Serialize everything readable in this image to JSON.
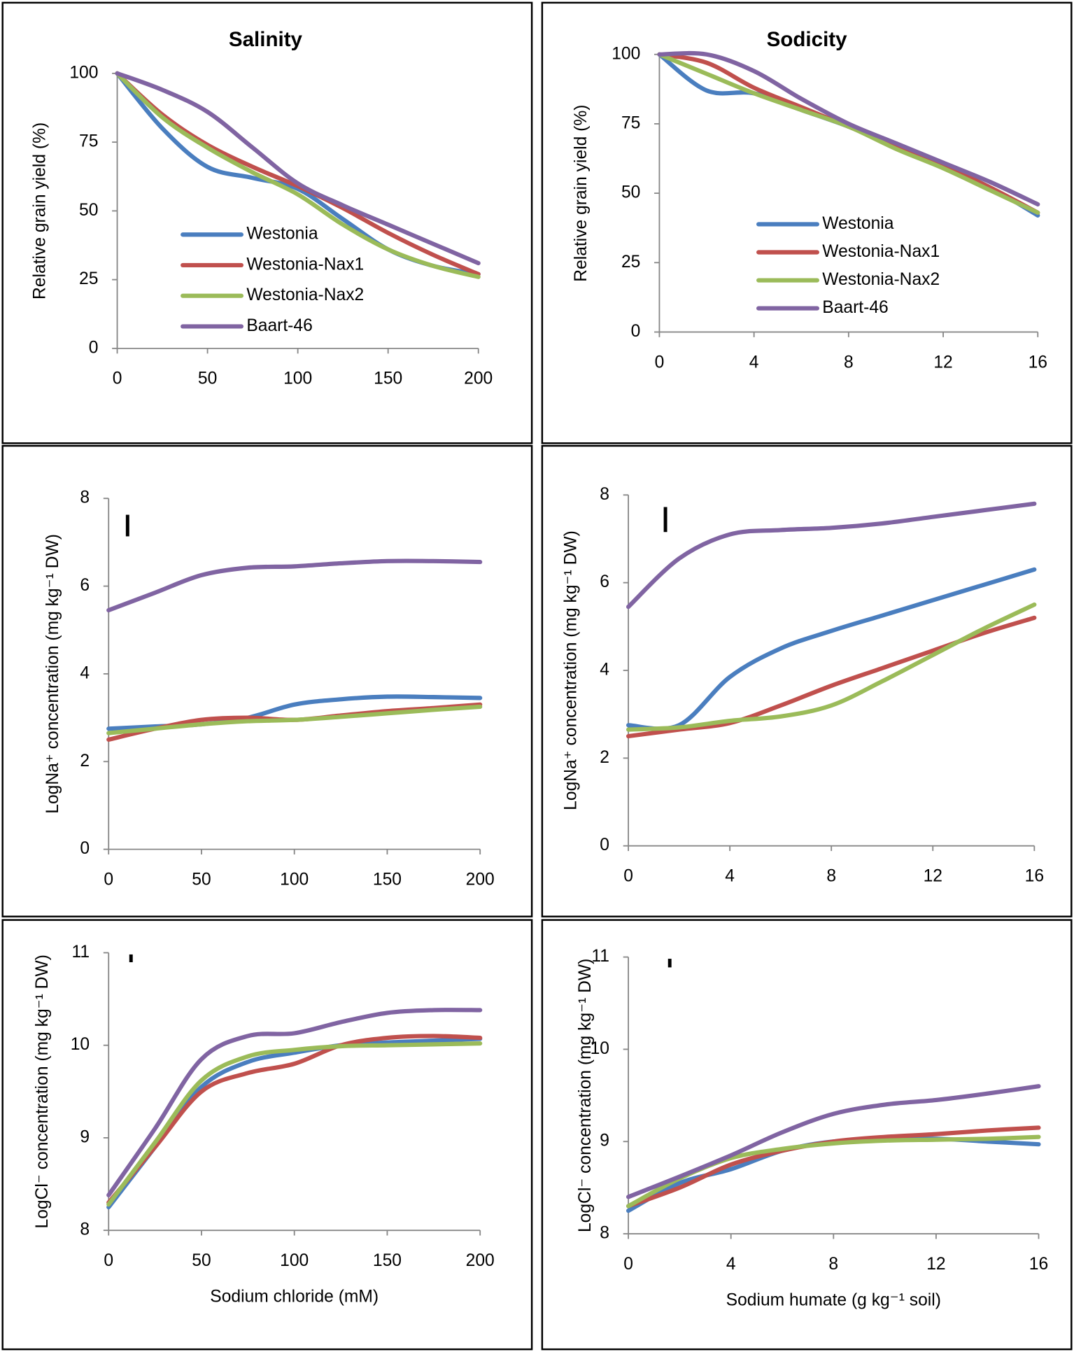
{
  "chart_data": [
    {
      "type": "line",
      "title": "Salinity",
      "y_label": "Relative grain yield (%)",
      "x": [
        0,
        25,
        50,
        75,
        100,
        125,
        150,
        175,
        200
      ],
      "xlim": [
        0,
        200
      ],
      "xticks": [
        0,
        50,
        100,
        150,
        200
      ],
      "ylim": [
        0,
        100
      ],
      "yticks": [
        0,
        25,
        50,
        75,
        100
      ],
      "legend": true,
      "series": [
        {
          "name": "Westonia",
          "color": "#4a7ebf",
          "values": [
            100,
            80,
            66,
            62,
            58,
            47,
            36,
            30,
            27
          ]
        },
        {
          "name": "Westonia-Nax1",
          "color": "#c0504d",
          "values": [
            100,
            85,
            74,
            66,
            59,
            51,
            42,
            34,
            27
          ]
        },
        {
          "name": "Westonia-Nax2",
          "color": "#9bbb59",
          "values": [
            100,
            84,
            73,
            64,
            56,
            45,
            36,
            30,
            26
          ]
        },
        {
          "name": "Baart-46",
          "color": "#8064a2",
          "values": [
            100,
            94,
            86,
            73,
            60,
            52,
            45,
            38,
            31
          ]
        }
      ]
    },
    {
      "type": "line",
      "title": "Sodicity",
      "y_label": "Relative grain yield (%)",
      "x": [
        0,
        2,
        4,
        6,
        8,
        10,
        12,
        14,
        16
      ],
      "xlim": [
        0,
        16
      ],
      "xticks": [
        0,
        4,
        8,
        12,
        16
      ],
      "ylim": [
        0,
        100
      ],
      "yticks": [
        0,
        25,
        50,
        75,
        100
      ],
      "legend": true,
      "series": [
        {
          "name": "Westonia",
          "color": "#4a7ebf",
          "values": [
            100,
            87,
            86,
            80,
            74,
            67,
            60,
            52,
            42
          ]
        },
        {
          "name": "Westonia-Nax1",
          "color": "#c0504d",
          "values": [
            100,
            97,
            88,
            81,
            74,
            67,
            60,
            52,
            43
          ]
        },
        {
          "name": "Westonia-Nax2",
          "color": "#9bbb59",
          "values": [
            100,
            93,
            86,
            80,
            74,
            66,
            59,
            51,
            43
          ]
        },
        {
          "name": "Baart-46",
          "color": "#8064a2",
          "values": [
            100,
            100,
            94,
            84,
            75,
            68,
            61,
            54,
            46
          ]
        }
      ]
    },
    {
      "type": "line",
      "y_label": "LogNa⁺ concentration (mg kg⁻¹ DW)",
      "x": [
        0,
        25,
        50,
        75,
        100,
        125,
        150,
        175,
        200
      ],
      "xlim": [
        0,
        200
      ],
      "xticks": [
        0,
        50,
        100,
        150,
        200
      ],
      "ylim": [
        0,
        8
      ],
      "yticks": [
        0,
        2,
        4,
        6,
        8
      ],
      "legend": false,
      "series": [
        {
          "color": "#4a7ebf",
          "values": [
            2.75,
            2.8,
            2.85,
            3.0,
            3.3,
            3.42,
            3.48,
            3.47,
            3.45
          ]
        },
        {
          "color": "#c0504d",
          "values": [
            2.5,
            2.75,
            2.95,
            3.0,
            2.95,
            3.05,
            3.15,
            3.22,
            3.3
          ]
        },
        {
          "color": "#9bbb59",
          "values": [
            2.65,
            2.75,
            2.85,
            2.92,
            2.95,
            3.02,
            3.1,
            3.18,
            3.25
          ]
        },
        {
          "color": "#8064a2",
          "values": [
            5.45,
            5.85,
            6.25,
            6.42,
            6.45,
            6.52,
            6.57,
            6.57,
            6.55
          ]
        }
      ]
    },
    {
      "type": "line",
      "y_label": "LogNa⁺ concentration (mg kg⁻¹ DW)",
      "x": [
        0,
        2,
        4,
        6,
        8,
        10,
        12,
        14,
        16
      ],
      "xlim": [
        0,
        16
      ],
      "xticks": [
        0,
        4,
        8,
        12,
        16
      ],
      "ylim": [
        0,
        8
      ],
      "yticks": [
        0,
        2,
        4,
        6,
        8
      ],
      "legend": false,
      "series": [
        {
          "color": "#4a7ebf",
          "values": [
            2.75,
            2.75,
            3.85,
            4.5,
            4.9,
            5.25,
            5.6,
            5.95,
            6.3
          ]
        },
        {
          "color": "#c0504d",
          "values": [
            2.5,
            2.65,
            2.8,
            3.2,
            3.65,
            4.05,
            4.45,
            4.85,
            5.2
          ]
        },
        {
          "color": "#9bbb59",
          "values": [
            2.65,
            2.7,
            2.85,
            2.95,
            3.2,
            3.75,
            4.35,
            4.95,
            5.5
          ]
        },
        {
          "color": "#8064a2",
          "values": [
            5.45,
            6.55,
            7.1,
            7.2,
            7.25,
            7.35,
            7.5,
            7.65,
            7.8
          ]
        }
      ]
    },
    {
      "type": "line",
      "y_label": "LogCl⁻ concentration (mg kg⁻¹ DW)",
      "x_label": "Sodium chloride (mM)",
      "x": [
        0,
        25,
        50,
        75,
        100,
        125,
        150,
        175,
        200
      ],
      "xlim": [
        0,
        200
      ],
      "xticks": [
        0,
        50,
        100,
        150,
        200
      ],
      "ylim": [
        8,
        11
      ],
      "yticks": [
        8,
        9,
        10,
        11
      ],
      "legend": false,
      "series": [
        {
          "color": "#4a7ebf",
          "values": [
            8.25,
            8.9,
            9.55,
            9.82,
            9.92,
            10.0,
            10.03,
            10.05,
            10.07
          ]
        },
        {
          "color": "#c0504d",
          "values": [
            8.3,
            8.9,
            9.5,
            9.7,
            9.8,
            10.0,
            10.08,
            10.1,
            10.08
          ]
        },
        {
          "color": "#9bbb59",
          "values": [
            8.28,
            8.95,
            9.62,
            9.88,
            9.95,
            9.99,
            10.0,
            10.01,
            10.02
          ]
        },
        {
          "color": "#8064a2",
          "values": [
            8.38,
            9.1,
            9.85,
            10.1,
            10.13,
            10.25,
            10.35,
            10.38,
            10.38
          ]
        }
      ]
    },
    {
      "type": "line",
      "y_label": "LogCl⁻ concentration (mg kg⁻¹ DW)",
      "x_label": "Sodium humate (g kg⁻¹ soil)",
      "x": [
        0,
        2,
        4,
        6,
        8,
        10,
        12,
        14,
        16
      ],
      "xlim": [
        0,
        16
      ],
      "xticks": [
        0,
        4,
        8,
        12,
        16
      ],
      "ylim": [
        8,
        11
      ],
      "yticks": [
        8,
        9,
        10,
        11
      ],
      "legend": false,
      "series": [
        {
          "color": "#4a7ebf",
          "values": [
            8.25,
            8.55,
            8.7,
            8.9,
            9.0,
            9.02,
            9.03,
            9.0,
            8.97
          ]
        },
        {
          "color": "#c0504d",
          "values": [
            8.3,
            8.5,
            8.75,
            8.9,
            9.0,
            9.05,
            9.08,
            9.12,
            9.15
          ]
        },
        {
          "color": "#9bbb59",
          "values": [
            8.3,
            8.6,
            8.82,
            8.92,
            8.98,
            9.01,
            9.02,
            9.03,
            9.05
          ]
        },
        {
          "color": "#8064a2",
          "values": [
            8.4,
            8.62,
            8.85,
            9.1,
            9.3,
            9.4,
            9.45,
            9.52,
            9.6
          ]
        }
      ]
    }
  ]
}
